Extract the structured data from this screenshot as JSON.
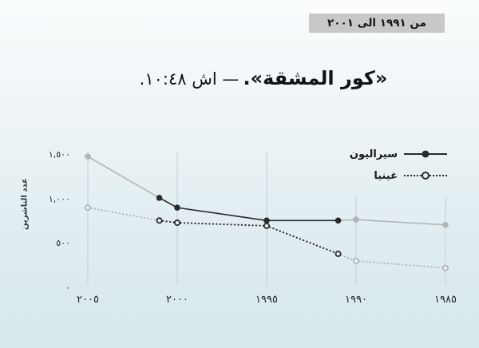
{
  "header": {
    "range_label": "من ١٩٩١ الى ٢٠٠١"
  },
  "title": {
    "book_phrase": "«كور المشقة».",
    "reference": "— اش ١٠:٤٨."
  },
  "chart_data": {
    "type": "line",
    "title": "«كور المشقة». — اش ١٠:٤٨.",
    "ylabel": "عدد الناشرين",
    "ylim": [
      0,
      1500
    ],
    "x_axis_direction": "rtl-reversed (2005 at left, 1985 at right)",
    "x": [
      2005,
      2001,
      2000,
      1995,
      1991,
      1990,
      1985
    ],
    "x_tick_years": [
      2005,
      2000,
      1995,
      1990,
      1985
    ],
    "x_ticks": [
      "٢٠٠٥",
      "٢٠٠٠",
      "١٩٩٥",
      "١٩٩٠",
      "١٩٨٥"
    ],
    "y_tick_values": [
      1500,
      1000,
      500,
      0
    ],
    "y_ticks": [
      "١,٥٠٠",
      "١,٠٠٠",
      "٥٠٠",
      "٠"
    ],
    "grid": "vertical-only",
    "legend_position": "top-right",
    "highlight_year_range": [
      1991,
      2001
    ],
    "series": [
      {
        "name": "سيراليون",
        "style": "solid",
        "values": [
          1490,
          1025,
          915,
          770,
          770,
          780,
          720
        ]
      },
      {
        "name": "غينيا",
        "style": "dotted",
        "values": [
          915,
          770,
          745,
          710,
          395,
          315,
          235
        ]
      }
    ],
    "colors": {
      "highlight": "#2b2b2b",
      "muted": "#b3b6b6",
      "gridline": "#c3ced3",
      "open_circle_fill": "#e9f1f4",
      "badge_bg": "#c7c8c8"
    }
  }
}
